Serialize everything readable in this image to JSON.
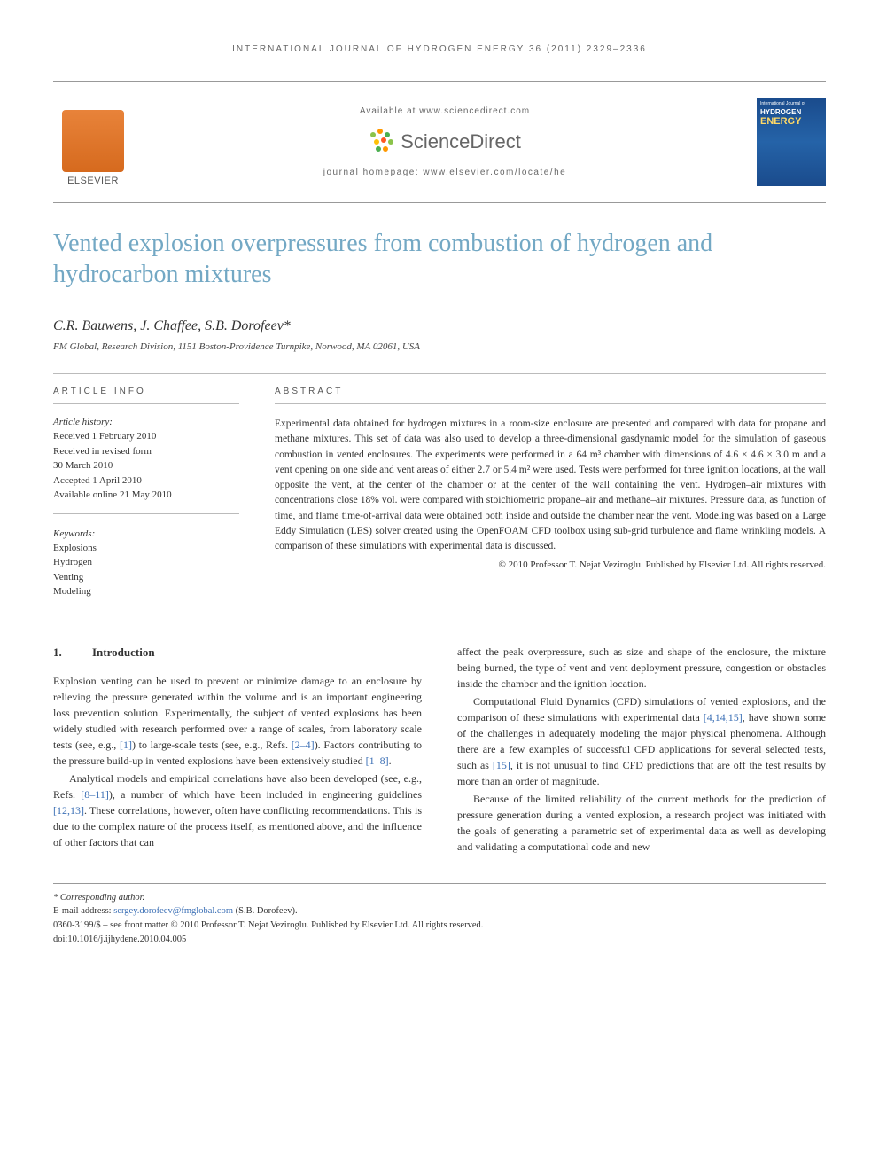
{
  "running_head": "INTERNATIONAL JOURNAL OF HYDROGEN ENERGY 36 (2011) 2329–2336",
  "header": {
    "available_at": "Available at www.sciencedirect.com",
    "sd_brand": "ScienceDirect",
    "journal_homepage": "journal homepage: www.elsevier.com/locate/he",
    "elsevier": "ELSEVIER",
    "cover_line1": "International Journal of",
    "cover_line2": "HYDROGEN",
    "cover_line3": "ENERGY"
  },
  "title": "Vented explosion overpressures from combustion of hydrogen and hydrocarbon mixtures",
  "authors": "C.R. Bauwens, J. Chaffee, S.B. Dorofeev*",
  "affiliation": "FM Global, Research Division, 1151 Boston-Providence Turnpike, Norwood, MA 02061, USA",
  "info": {
    "label": "ARTICLE INFO",
    "history_label": "Article history:",
    "history": [
      "Received 1 February 2010",
      "Received in revised form",
      "30 March 2010",
      "Accepted 1 April 2010",
      "Available online 21 May 2010"
    ],
    "keywords_label": "Keywords:",
    "keywords": [
      "Explosions",
      "Hydrogen",
      "Venting",
      "Modeling"
    ]
  },
  "abstract": {
    "label": "ABSTRACT",
    "text": "Experimental data obtained for hydrogen mixtures in a room-size enclosure are presented and compared with data for propane and methane mixtures. This set of data was also used to develop a three-dimensional gasdynamic model for the simulation of gaseous combustion in vented enclosures. The experiments were performed in a 64 m³ chamber with dimensions of 4.6 × 4.6 × 3.0 m and a vent opening on one side and vent areas of either 2.7 or 5.4 m² were used. Tests were performed for three ignition locations, at the wall opposite the vent, at the center of the chamber or at the center of the wall containing the vent. Hydrogen–air mixtures with concentrations close 18% vol. were compared with stoichiometric propane–air and methane–air mixtures. Pressure data, as function of time, and flame time-of-arrival data were obtained both inside and outside the chamber near the vent. Modeling was based on a Large Eddy Simulation (LES) solver created using the OpenFOAM CFD toolbox using sub-grid turbulence and flame wrinkling models. A comparison of these simulations with experimental data is discussed.",
    "copyright": "© 2010 Professor T. Nejat Veziroglu. Published by Elsevier Ltd. All rights reserved."
  },
  "body": {
    "section_num": "1.",
    "section_title": "Introduction",
    "col1_p1_a": "Explosion venting can be used to prevent or minimize damage to an enclosure by relieving the pressure generated within the volume and is an important engineering loss prevention solution. Experimentally, the subject of vented explosions has been widely studied with research performed over a range of scales, from laboratory scale tests (see, e.g., ",
    "ref1": "[1]",
    "col1_p1_b": ") to large-scale tests (see, e.g., Refs. ",
    "ref2": "[2–4]",
    "col1_p1_c": "). Factors contributing to the pressure build-up in vented explosions have been extensively studied ",
    "ref3": "[1–8]",
    "col1_p1_d": ".",
    "col1_p2_a": "Analytical models and empirical correlations have also been developed (see, e.g., Refs. ",
    "ref4": "[8–11]",
    "col1_p2_b": "), a number of which have been included in engineering guidelines ",
    "ref5": "[12,13]",
    "col1_p2_c": ". These correlations, however, often have conflicting recommendations. This is due to the complex nature of the process itself, as mentioned above, and the influence of other factors that can",
    "col2_p1": "affect the peak overpressure, such as size and shape of the enclosure, the mixture being burned, the type of vent and vent deployment pressure, congestion or obstacles inside the chamber and the ignition location.",
    "col2_p2_a": "Computational Fluid Dynamics (CFD) simulations of vented explosions, and the comparison of these simulations with experimental data ",
    "ref6": "[4,14,15]",
    "col2_p2_b": ", have shown some of the challenges in adequately modeling the major physical phenomena. Although there are a few examples of successful CFD applications for several selected tests, such as ",
    "ref7": "[15]",
    "col2_p2_c": ", it is not unusual to find CFD predictions that are off the test results by more than an order of magnitude.",
    "col2_p3": "Because of the limited reliability of the current methods for the prediction of pressure generation during a vented explosion, a research project was initiated with the goals of generating a parametric set of experimental data as well as developing and validating a computational code and new"
  },
  "footnotes": {
    "corr": "* Corresponding author.",
    "email_label": "E-mail address: ",
    "email": "sergey.dorofeev@fmglobal.com",
    "email_tail": " (S.B. Dorofeev).",
    "front_matter": "0360-3199/$ – see front matter © 2010 Professor T. Nejat Veziroglu. Published by Elsevier Ltd. All rights reserved.",
    "doi": "doi:10.1016/j.ijhydene.2010.04.005"
  },
  "colors": {
    "title": "#73a8c4",
    "link": "#3b6fb5",
    "elsevier_orange": "#e8833a",
    "rule": "#999999"
  }
}
